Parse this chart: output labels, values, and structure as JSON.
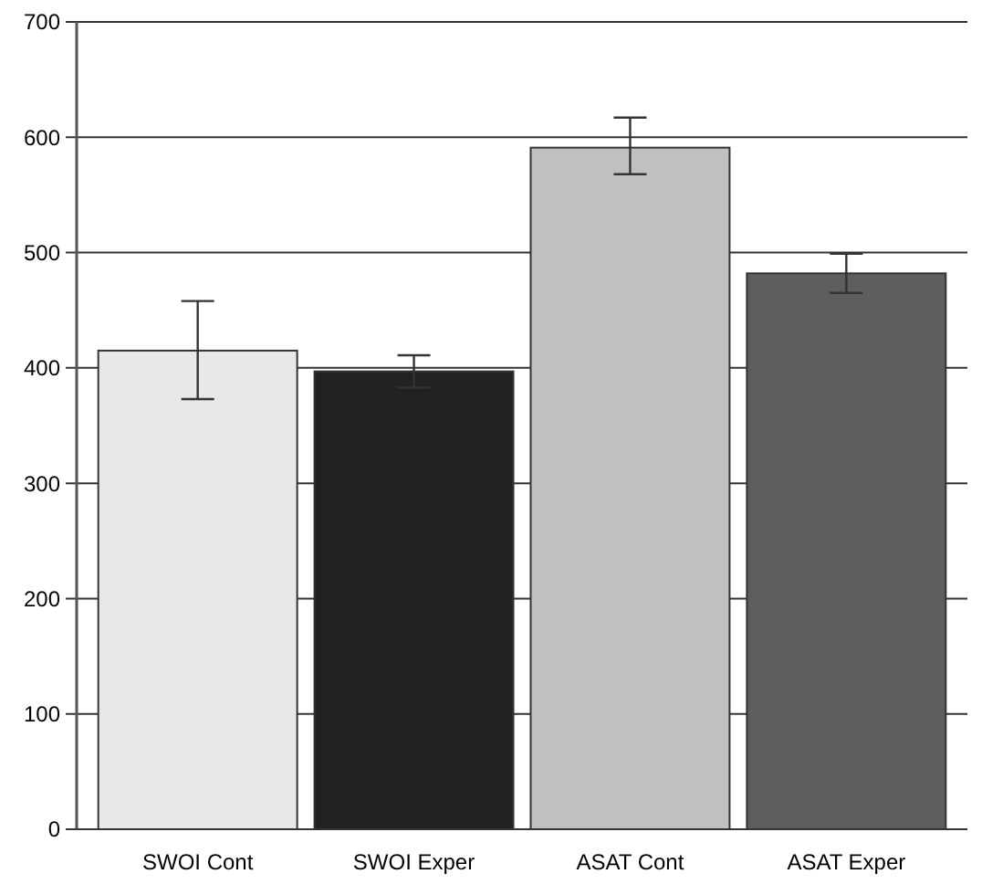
{
  "chart_data": {
    "type": "bar",
    "categories": [
      "SWOI Cont",
      "SWOI Exper",
      "ASAT Cont",
      "ASAT Exper"
    ],
    "values": [
      415,
      397,
      591,
      482
    ],
    "colors": [
      "#e8e8e8",
      "#222222",
      "#c0c0c0",
      "#5e5e5e"
    ],
    "errors": [
      [
        373,
        458
      ],
      [
        383,
        411
      ],
      [
        568,
        617
      ],
      [
        465,
        499
      ]
    ],
    "ylim": [
      0,
      700
    ],
    "yticks": [
      0,
      100,
      200,
      300,
      400,
      500,
      600,
      700
    ],
    "grid": "y"
  }
}
